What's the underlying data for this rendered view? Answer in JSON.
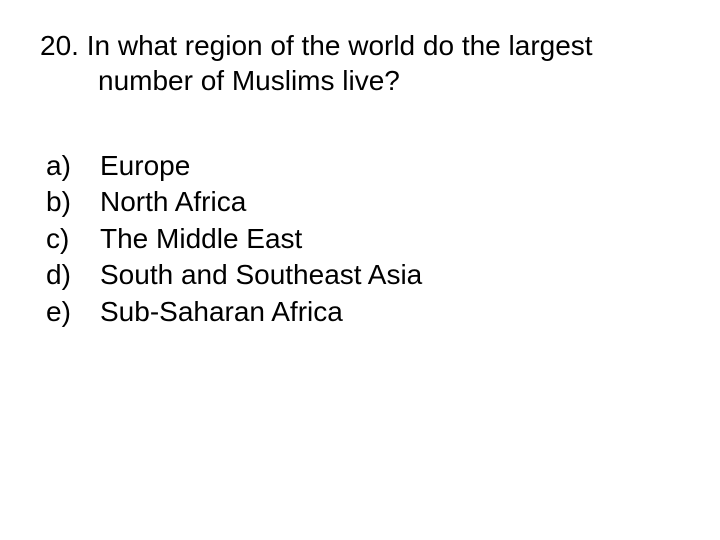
{
  "question": {
    "number": "20.",
    "line1": "In what region of the world do the largest",
    "line2": "number of Muslims live?"
  },
  "options": [
    {
      "letter": "a)",
      "text": "Europe"
    },
    {
      "letter": "b)",
      "text": "North Africa"
    },
    {
      "letter": "c)",
      "text": "The Middle East"
    },
    {
      "letter": "d)",
      "text": "South and Southeast Asia"
    },
    {
      "letter": "e)",
      "text": "Sub-Saharan Africa"
    }
  ],
  "style": {
    "background_color": "#ffffff",
    "text_color": "#000000",
    "font_family": "Arial",
    "question_fontsize": 28,
    "option_fontsize": 28
  }
}
